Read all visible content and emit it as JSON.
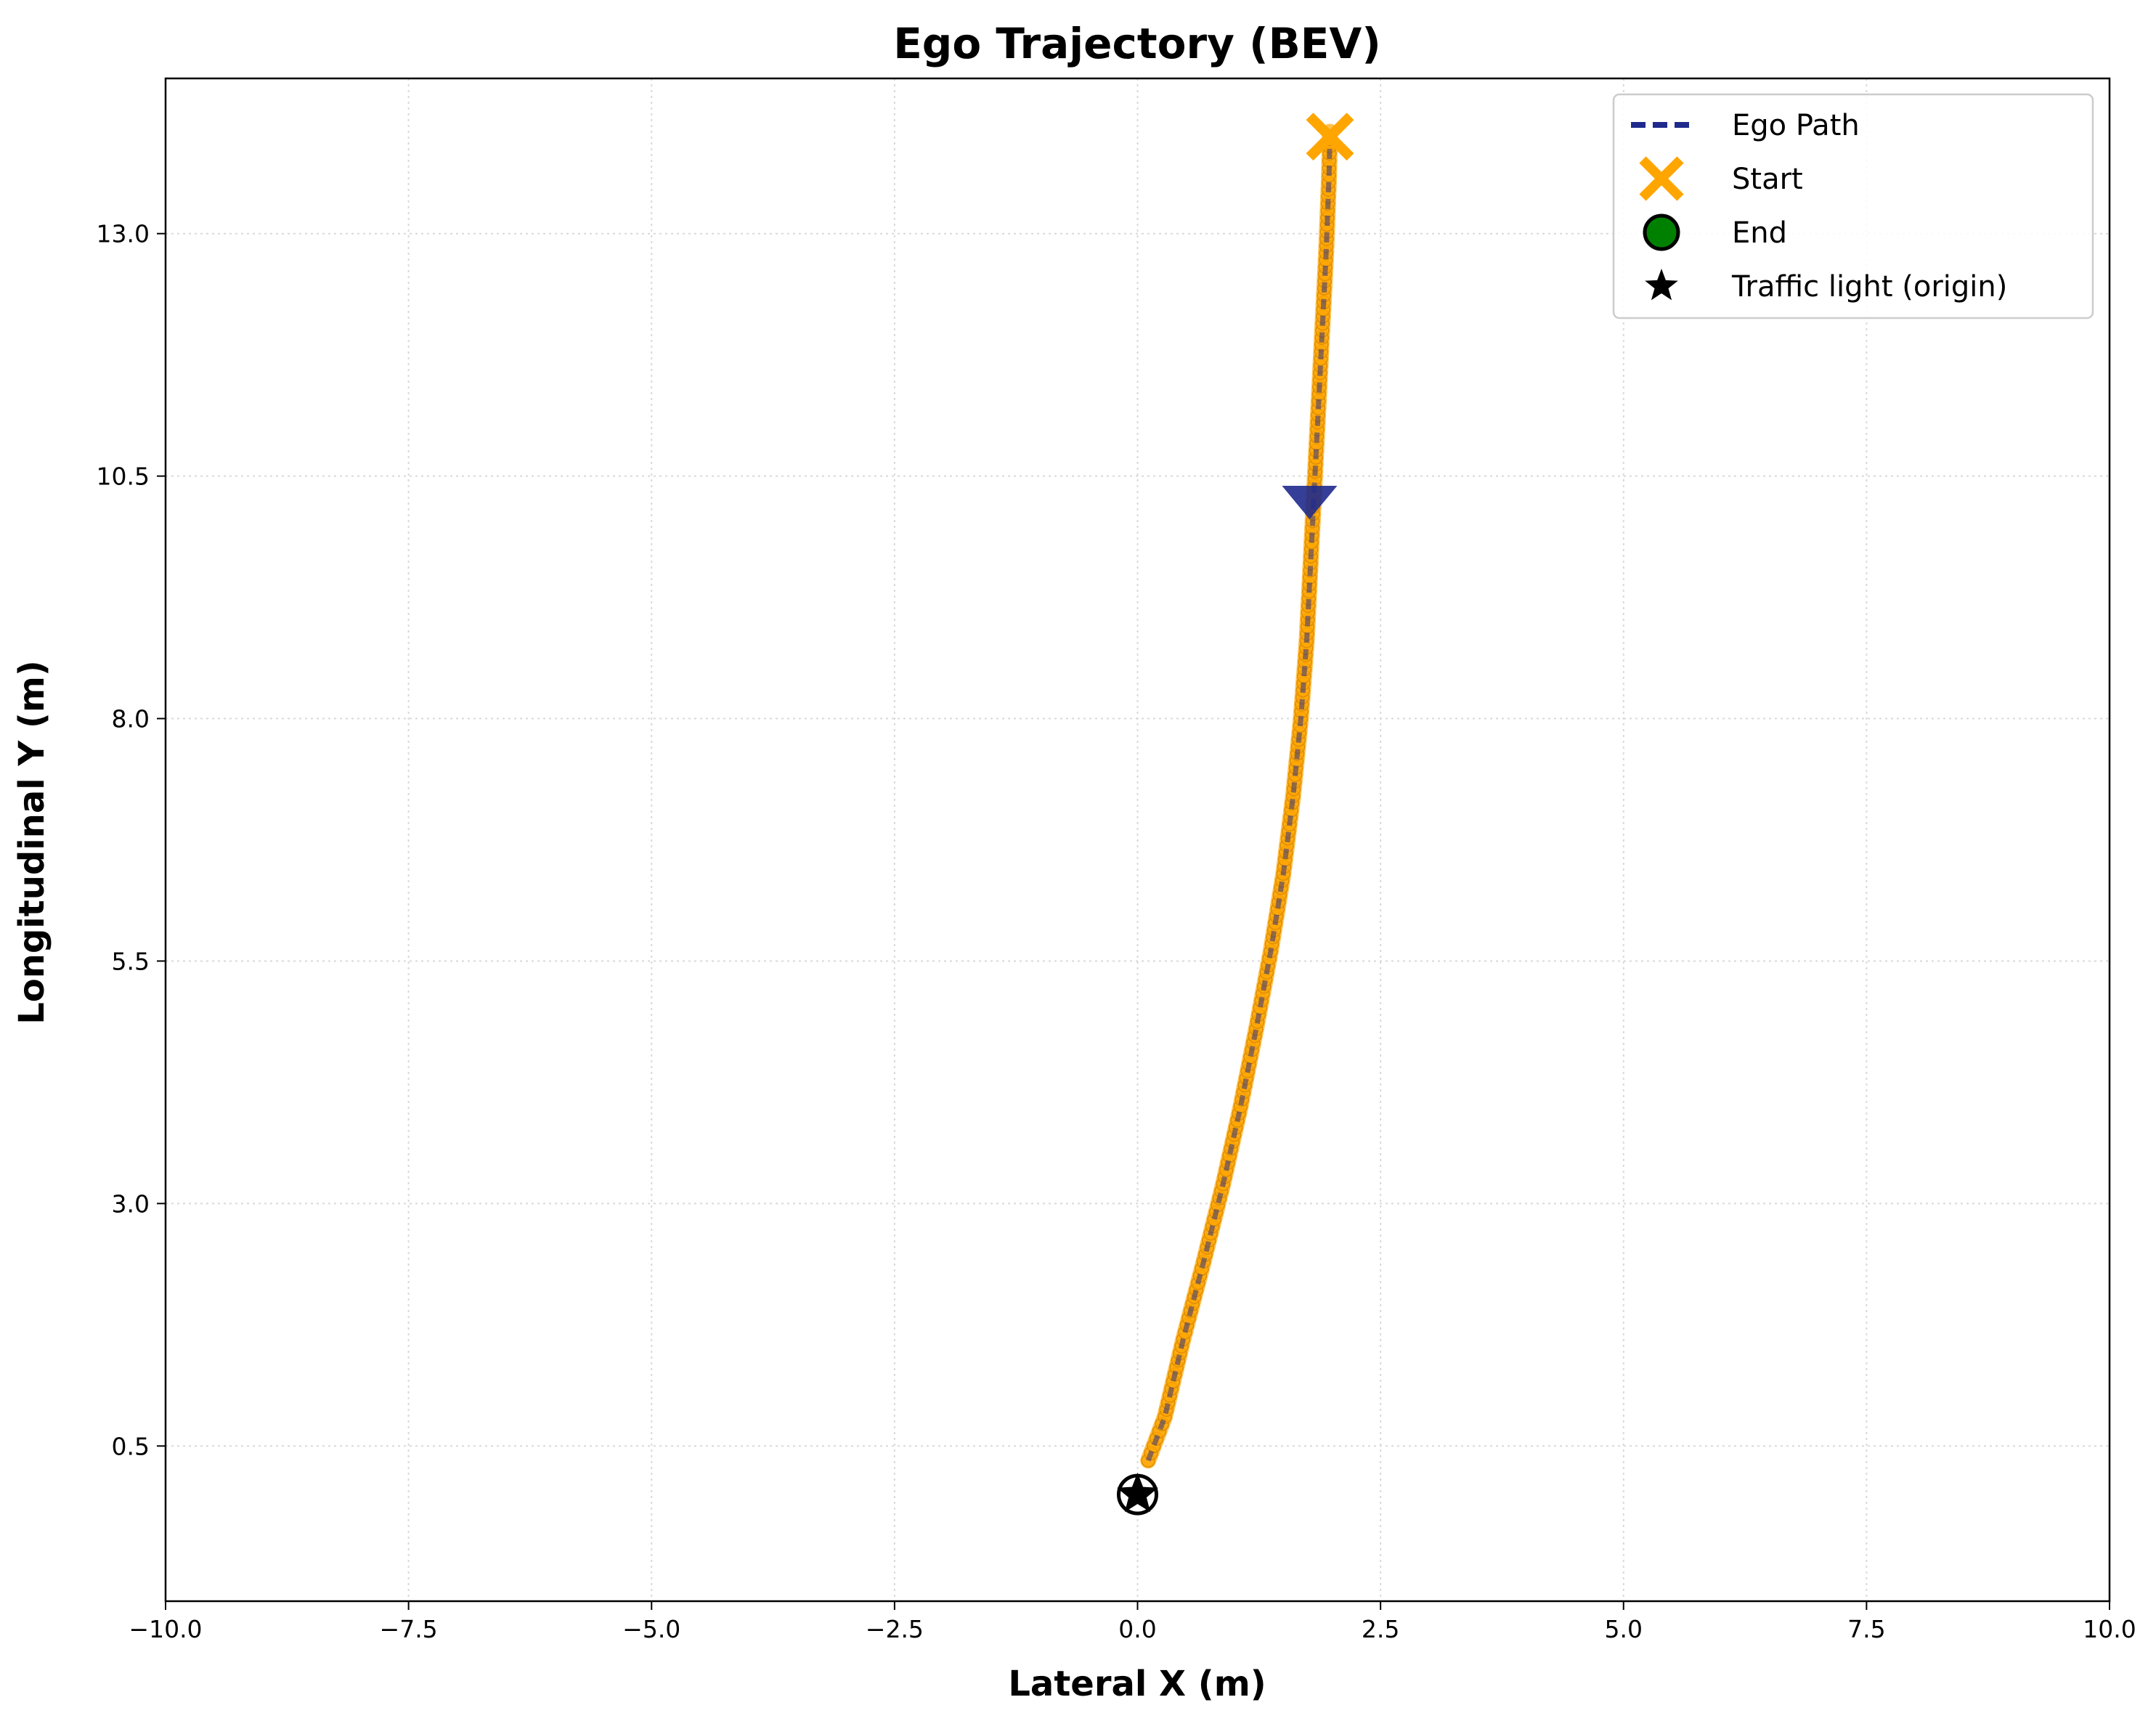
{
  "chart_data": {
    "type": "scatter",
    "title": "Ego Trajectory (BEV)",
    "xlabel": "Lateral X (m)",
    "ylabel": "Longitudinal Y (m)",
    "xlim": [
      -10,
      10
    ],
    "ylim": [
      -1.1,
      14.6
    ],
    "xticks": [
      -10,
      -7.5,
      -5,
      -2.5,
      0,
      2.5,
      5,
      7.5,
      10
    ],
    "xtick_labels": [
      "−10.0",
      "−7.5",
      "−5.0",
      "−2.5",
      "0.0",
      "2.5",
      "5.0",
      "7.5",
      "10.0"
    ],
    "yticks": [
      0.5,
      3.0,
      5.5,
      8.0,
      10.5,
      13.0
    ],
    "ytick_labels": [
      "0.5",
      "3.0",
      "5.5",
      "8.0",
      "10.5",
      "13.0"
    ],
    "grid": true,
    "legend_position": "top-right",
    "colors": {
      "path": "#1f2a8c",
      "points": "#ffa500",
      "start": "#ffa500",
      "end": "#008000",
      "traffic_light": "#000000",
      "heading_marker": "#1f2a8c",
      "grid": "#d9d9d9"
    },
    "series": [
      {
        "name": "Ego Path",
        "style": "dashed-line",
        "x": [
          0.11,
          0.28,
          0.47,
          0.68,
          0.88,
          1.06,
          1.22,
          1.37,
          1.5,
          1.6,
          1.68,
          1.74,
          1.78,
          1.82,
          1.86,
          1.9,
          1.94,
          1.97,
          1.98
        ],
        "y": [
          0.35,
          0.8,
          1.6,
          2.4,
          3.2,
          4.0,
          4.8,
          5.6,
          6.4,
          7.2,
          8.0,
          8.8,
          9.6,
          10.4,
          11.2,
          12.0,
          12.8,
          13.6,
          14.05
        ]
      }
    ],
    "start_point": {
      "label": "Start",
      "x": 1.98,
      "y": 14.0
    },
    "end_point": {
      "label": "End",
      "x": 0.0,
      "y": 0.0
    },
    "traffic_light": {
      "label": "Traffic light (origin)",
      "x": 0.0,
      "y": 0.0
    },
    "heading_marker": {
      "x": 1.77,
      "y": 10.25
    },
    "legend": [
      {
        "label": "Ego Path",
        "symbol": "dashed-line"
      },
      {
        "label": "Start",
        "symbol": "x"
      },
      {
        "label": "End",
        "symbol": "circle"
      },
      {
        "label": "Traffic light (origin)",
        "symbol": "star"
      }
    ]
  }
}
